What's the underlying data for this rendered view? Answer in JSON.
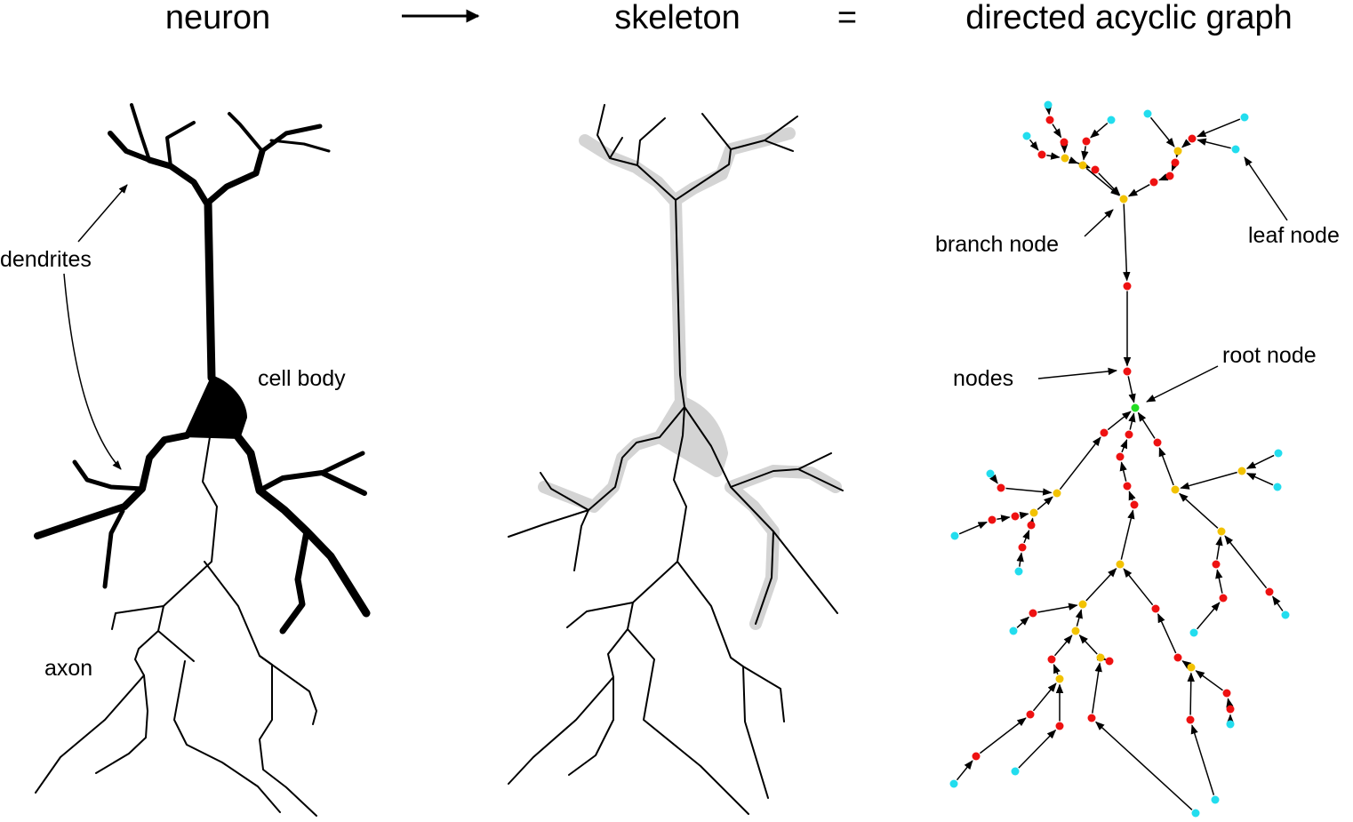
{
  "header": {
    "neuron": "neuron",
    "skeleton": "skeleton",
    "equals": "=",
    "graph": "directed acyclic graph"
  },
  "labels": {
    "dendrites": "dendrites",
    "cell_body": "cell body",
    "axon": "axon",
    "branch_node": "branch node",
    "leaf_node": "leaf node",
    "nodes": "nodes",
    "root_node": "root node"
  },
  "colors": {
    "root": "#22dd22",
    "branch": "#f2c200",
    "node": "#ee1111",
    "leaf": "#22ddee",
    "skeleton_shadow": "#d4d4d4"
  }
}
